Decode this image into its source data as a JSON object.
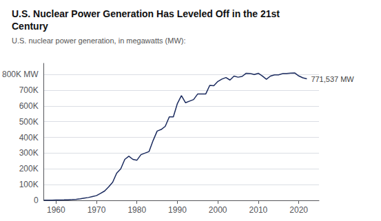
{
  "chart_data": {
    "type": "line",
    "title": "U.S. Nuclear Power Generation Has Leveled Off in the 21st\nCentury",
    "subtitle": "U.S. nuclear power generation, in megawatts (MW):",
    "annotation": "771,537 MW",
    "color": "#1a2a5e",
    "grid": true,
    "xlim": [
      1957,
      2025
    ],
    "ylim": [
      0,
      870000
    ],
    "xticks": [
      1960,
      1970,
      1980,
      1990,
      2000,
      2010,
      2020
    ],
    "yticks": [
      0,
      {
        "value": 100000,
        "label": "100K"
      },
      {
        "value": 200000,
        "label": "200K"
      },
      {
        "value": 300000,
        "label": "300K"
      },
      {
        "value": 400000,
        "label": "400K"
      },
      {
        "value": 500000,
        "label": "500K"
      },
      {
        "value": 600000,
        "label": "600K"
      },
      {
        "value": 700000,
        "label": "700K"
      },
      {
        "value": 800000,
        "label": "800K MW"
      }
    ],
    "x": [
      1957,
      1958,
      1959,
      1960,
      1961,
      1962,
      1963,
      1964,
      1965,
      1966,
      1967,
      1968,
      1969,
      1970,
      1971,
      1972,
      1973,
      1974,
      1975,
      1976,
      1977,
      1978,
      1979,
      1980,
      1981,
      1982,
      1983,
      1984,
      1985,
      1986,
      1987,
      1988,
      1989,
      1990,
      1991,
      1992,
      1993,
      1994,
      1995,
      1996,
      1997,
      1998,
      1999,
      2000,
      2001,
      2002,
      2003,
      2004,
      2005,
      2006,
      2007,
      2008,
      2009,
      2010,
      2011,
      2012,
      2013,
      2014,
      2015,
      2016,
      2017,
      2018,
      2019,
      2020,
      2021,
      2022
    ],
    "values": [
      1000,
      1200,
      1500,
      2000,
      2500,
      3000,
      3800,
      5000,
      7000,
      10000,
      14000,
      18000,
      24000,
      30000,
      44000,
      59000,
      85000,
      115000,
      173000,
      200000,
      260000,
      280000,
      260000,
      255000,
      290000,
      300000,
      310000,
      380000,
      440000,
      450000,
      470000,
      530000,
      530000,
      615000,
      665000,
      620000,
      630000,
      640000,
      675000,
      675000,
      675000,
      730000,
      728000,
      755000,
      770000,
      780000,
      764000,
      789000,
      782000,
      787000,
      807000,
      806000,
      799000,
      807000,
      790000,
      769000,
      789000,
      797000,
      797000,
      805000,
      805000,
      808000,
      809000,
      790000,
      778000,
      771537
    ]
  }
}
